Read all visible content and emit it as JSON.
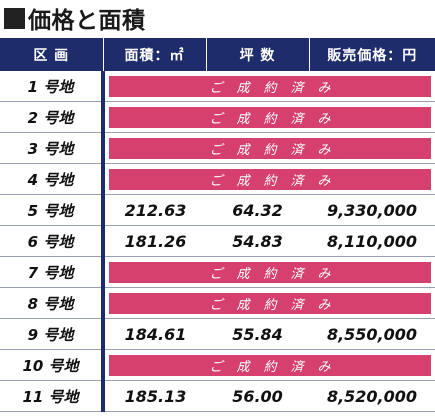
{
  "heading": {
    "text": "価格と面積"
  },
  "table": {
    "headers": [
      "区 画",
      "面積：㎡",
      "坪 数",
      "販売価格：円"
    ],
    "rows": [
      {
        "lot": "1 号地",
        "status": "ご成約済み"
      },
      {
        "lot": "2 号地",
        "status": "ご成約済み"
      },
      {
        "lot": "3 号地",
        "status": "ご成約済み"
      },
      {
        "lot": "4 号地",
        "status": "ご成約済み"
      },
      {
        "lot": "5 号地",
        "area": "212.63",
        "tsubo": "64.32",
        "price": "9,330,000"
      },
      {
        "lot": "6 号地",
        "area": "181.26",
        "tsubo": "54.83",
        "price": "8,110,000"
      },
      {
        "lot": "7 号地",
        "status": "ご成約済み"
      },
      {
        "lot": "8 号地",
        "status": "ご成約済み"
      },
      {
        "lot": "9 号地",
        "area": "184.61",
        "tsubo": "55.84",
        "price": "8,550,000"
      },
      {
        "lot": "10 号地",
        "status": "ご成約済み"
      },
      {
        "lot": "11 号地",
        "area": "185.13",
        "tsubo": "56.00",
        "price": "8,520,000"
      }
    ]
  },
  "colors": {
    "header_bg": "#1f2c6b",
    "sold_bar": "#d5406e"
  }
}
